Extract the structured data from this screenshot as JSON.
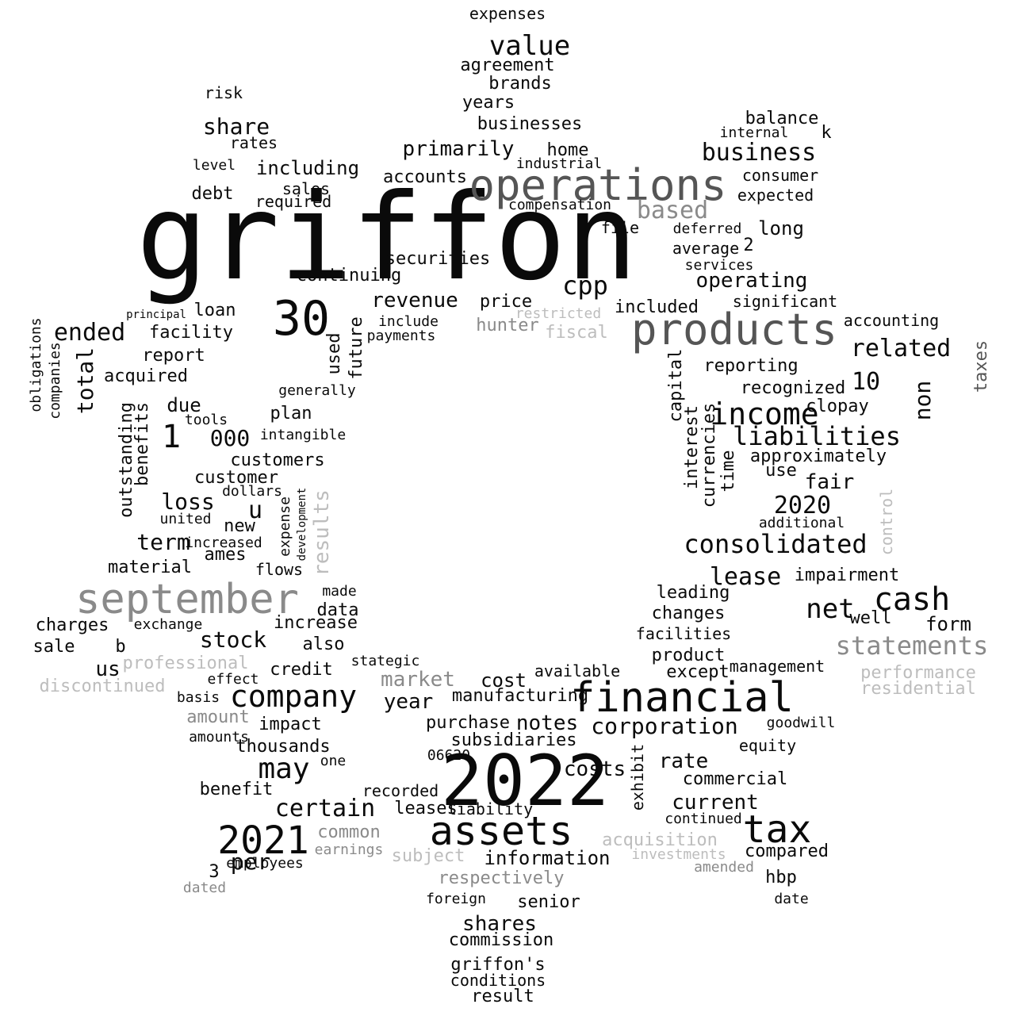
{
  "palette": {
    "dark": "#0a0a0a",
    "mid": "#555555",
    "gray": "#8a8a8a",
    "light": "#bdbdbd"
  },
  "words": [
    {
      "text": "griffon",
      "tone": "dark"
    },
    {
      "text": "2022",
      "tone": "dark"
    },
    {
      "text": "operations",
      "tone": "mid"
    },
    {
      "text": "products",
      "tone": "mid"
    },
    {
      "text": "september",
      "tone": "gray"
    },
    {
      "text": "financial",
      "tone": "dark"
    },
    {
      "text": "30",
      "tone": "dark"
    },
    {
      "text": "assets",
      "tone": "dark"
    },
    {
      "text": "2021",
      "tone": "dark"
    },
    {
      "text": "tax",
      "tone": "dark"
    },
    {
      "text": "income",
      "tone": "dark"
    },
    {
      "text": "company",
      "tone": "dark"
    },
    {
      "text": "cash",
      "tone": "dark"
    },
    {
      "text": "net",
      "tone": "dark"
    },
    {
      "text": "statements",
      "tone": "gray"
    },
    {
      "text": "liabilities",
      "tone": "dark"
    },
    {
      "text": "consolidated",
      "tone": "dark"
    },
    {
      "text": "value",
      "tone": "dark"
    },
    {
      "text": "business",
      "tone": "dark"
    },
    {
      "text": "may",
      "tone": "dark"
    },
    {
      "text": "1",
      "tone": "dark"
    },
    {
      "text": "000",
      "tone": "dark"
    },
    {
      "text": "based",
      "tone": "gray"
    },
    {
      "text": "related",
      "tone": "dark"
    },
    {
      "text": "lease",
      "tone": "dark"
    },
    {
      "text": "corporation",
      "tone": "dark"
    },
    {
      "text": "certain",
      "tone": "dark"
    },
    {
      "text": "costs",
      "tone": "dark"
    },
    {
      "text": "cpp",
      "tone": "dark"
    },
    {
      "text": "share",
      "tone": "dark"
    },
    {
      "text": "ended",
      "tone": "dark"
    },
    {
      "text": "total",
      "tone": "dark"
    },
    {
      "text": "term",
      "tone": "dark"
    },
    {
      "text": "market",
      "tone": "gray"
    },
    {
      "text": "current",
      "tone": "dark"
    },
    {
      "text": "revenue",
      "tone": "dark"
    },
    {
      "text": "stock",
      "tone": "dark"
    },
    {
      "text": "2020",
      "tone": "dark"
    },
    {
      "text": "10",
      "tone": "dark"
    },
    {
      "text": "non",
      "tone": "dark"
    },
    {
      "text": "including",
      "tone": "dark"
    },
    {
      "text": "operating",
      "tone": "dark"
    },
    {
      "text": "primarily",
      "tone": "dark"
    },
    {
      "text": "shares",
      "tone": "dark"
    },
    {
      "text": "notes",
      "tone": "dark"
    },
    {
      "text": "information",
      "tone": "dark"
    },
    {
      "text": "per",
      "tone": "dark"
    },
    {
      "text": "loss",
      "tone": "dark"
    },
    {
      "text": "results",
      "tone": "light"
    },
    {
      "text": "u",
      "tone": "dark"
    },
    {
      "text": "customers",
      "tone": "dark"
    },
    {
      "text": "fair",
      "tone": "dark"
    },
    {
      "text": "rate",
      "tone": "dark"
    },
    {
      "text": "approximately",
      "tone": "dark"
    },
    {
      "text": "agreement",
      "tone": "dark"
    },
    {
      "text": "expenses",
      "tone": "dark"
    },
    {
      "text": "brands",
      "tone": "dark"
    },
    {
      "text": "years",
      "tone": "dark"
    },
    {
      "text": "businesses",
      "tone": "dark"
    },
    {
      "text": "balance",
      "tone": "dark"
    },
    {
      "text": "k",
      "tone": "dark"
    },
    {
      "text": "internal",
      "tone": "dark"
    },
    {
      "text": "home",
      "tone": "dark"
    },
    {
      "text": "industrial",
      "tone": "dark"
    },
    {
      "text": "accounts",
      "tone": "dark"
    },
    {
      "text": "sales",
      "tone": "dark"
    },
    {
      "text": "debt",
      "tone": "dark"
    },
    {
      "text": "rates",
      "tone": "dark"
    },
    {
      "text": "risk",
      "tone": "dark"
    },
    {
      "text": "level",
      "tone": "dark"
    },
    {
      "text": "required",
      "tone": "dark"
    },
    {
      "text": "consumer",
      "tone": "dark"
    },
    {
      "text": "expected",
      "tone": "dark"
    },
    {
      "text": "long",
      "tone": "dark"
    },
    {
      "text": "file",
      "tone": "dark"
    },
    {
      "text": "compensation",
      "tone": "dark"
    },
    {
      "text": "deferred",
      "tone": "dark"
    },
    {
      "text": "average",
      "tone": "dark"
    },
    {
      "text": "2",
      "tone": "dark"
    },
    {
      "text": "services",
      "tone": "dark"
    },
    {
      "text": "securities",
      "tone": "dark"
    },
    {
      "text": "continuing",
      "tone": "dark"
    },
    {
      "text": "price",
      "tone": "dark"
    },
    {
      "text": "hunter",
      "tone": "gray"
    },
    {
      "text": "restricted",
      "tone": "light"
    },
    {
      "text": "fiscal",
      "tone": "light"
    },
    {
      "text": "included",
      "tone": "dark"
    },
    {
      "text": "significant",
      "tone": "dark"
    },
    {
      "text": "accounting",
      "tone": "dark"
    },
    {
      "text": "loan",
      "tone": "dark"
    },
    {
      "text": "facility",
      "tone": "dark"
    },
    {
      "text": "report",
      "tone": "dark"
    },
    {
      "text": "acquired",
      "tone": "dark"
    },
    {
      "text": "principal",
      "tone": "dark"
    },
    {
      "text": "future",
      "tone": "dark"
    },
    {
      "text": "used",
      "tone": "dark"
    },
    {
      "text": "include",
      "tone": "dark"
    },
    {
      "text": "payments",
      "tone": "dark"
    },
    {
      "text": "due",
      "tone": "dark"
    },
    {
      "text": "plan",
      "tone": "dark"
    },
    {
      "text": "generally",
      "tone": "dark"
    },
    {
      "text": "intangible",
      "tone": "dark"
    },
    {
      "text": "customer",
      "tone": "dark"
    },
    {
      "text": "reporting",
      "tone": "dark"
    },
    {
      "text": "recognized",
      "tone": "dark"
    },
    {
      "text": "clopay",
      "tone": "dark"
    },
    {
      "text": "capital",
      "tone": "dark"
    },
    {
      "text": "interest",
      "tone": "dark"
    },
    {
      "text": "currencies",
      "tone": "dark"
    },
    {
      "text": "time",
      "tone": "dark"
    },
    {
      "text": "use",
      "tone": "dark"
    },
    {
      "text": "taxes",
      "tone": "mid"
    },
    {
      "text": "impairment",
      "tone": "dark"
    },
    {
      "text": "leading",
      "tone": "dark"
    },
    {
      "text": "changes",
      "tone": "dark"
    },
    {
      "text": "facilities",
      "tone": "dark"
    },
    {
      "text": "product",
      "tone": "dark"
    },
    {
      "text": "except",
      "tone": "dark"
    },
    {
      "text": "management",
      "tone": "dark"
    },
    {
      "text": "form",
      "tone": "dark"
    },
    {
      "text": "well",
      "tone": "dark"
    },
    {
      "text": "performance",
      "tone": "light"
    },
    {
      "text": "residential",
      "tone": "light"
    },
    {
      "text": "discontinued",
      "tone": "light"
    },
    {
      "text": "professional",
      "tone": "light"
    },
    {
      "text": "us",
      "tone": "dark"
    },
    {
      "text": "sale",
      "tone": "dark"
    },
    {
      "text": "charges",
      "tone": "dark"
    },
    {
      "text": "b",
      "tone": "dark"
    },
    {
      "text": "material",
      "tone": "dark"
    },
    {
      "text": "ames",
      "tone": "dark"
    },
    {
      "text": "new",
      "tone": "dark"
    },
    {
      "text": "increased",
      "tone": "dark"
    },
    {
      "text": "flows",
      "tone": "dark"
    },
    {
      "text": "expense",
      "tone": "dark"
    },
    {
      "text": "development",
      "tone": "dark"
    },
    {
      "text": "data",
      "tone": "dark"
    },
    {
      "text": "increase",
      "tone": "dark"
    },
    {
      "text": "also",
      "tone": "dark"
    },
    {
      "text": "credit",
      "tone": "dark"
    },
    {
      "text": "made",
      "tone": "dark"
    },
    {
      "text": "effect",
      "tone": "dark"
    },
    {
      "text": "amount",
      "tone": "gray"
    },
    {
      "text": "impact",
      "tone": "dark"
    },
    {
      "text": "year",
      "tone": "dark"
    },
    {
      "text": "cost",
      "tone": "dark"
    },
    {
      "text": "manufacturing",
      "tone": "dark"
    },
    {
      "text": "purchase",
      "tone": "dark"
    },
    {
      "text": "subsidiaries",
      "tone": "dark"
    },
    {
      "text": "thousands",
      "tone": "dark"
    },
    {
      "text": "one",
      "tone": "dark"
    },
    {
      "text": "benefit",
      "tone": "dark"
    },
    {
      "text": "recorded",
      "tone": "dark"
    },
    {
      "text": "leases",
      "tone": "dark"
    },
    {
      "text": "liability",
      "tone": "dark"
    },
    {
      "text": "common",
      "tone": "gray"
    },
    {
      "text": "subject",
      "tone": "light"
    },
    {
      "text": "respectively",
      "tone": "gray"
    },
    {
      "text": "senior",
      "tone": "dark"
    },
    {
      "text": "commission",
      "tone": "dark"
    },
    {
      "text": "griffon's",
      "tone": "dark"
    },
    {
      "text": "conditions",
      "tone": "dark"
    },
    {
      "text": "result",
      "tone": "dark"
    },
    {
      "text": "foreign",
      "tone": "dark"
    },
    {
      "text": "acquisition",
      "tone": "light"
    },
    {
      "text": "investments",
      "tone": "light"
    },
    {
      "text": "compared",
      "tone": "dark"
    },
    {
      "text": "hbp",
      "tone": "dark"
    },
    {
      "text": "amended",
      "tone": "gray"
    },
    {
      "text": "commercial",
      "tone": "dark"
    },
    {
      "text": "continued",
      "tone": "dark"
    },
    {
      "text": "equity",
      "tone": "dark"
    },
    {
      "text": "goodwill",
      "tone": "dark"
    },
    {
      "text": "exhibit",
      "tone": "dark"
    },
    {
      "text": "available",
      "tone": "dark"
    },
    {
      "text": "date",
      "tone": "dark"
    },
    {
      "text": "3",
      "tone": "dark"
    },
    {
      "text": "amounts",
      "tone": "dark"
    },
    {
      "text": "employees",
      "tone": "dark"
    },
    {
      "text": "dated",
      "tone": "gray"
    },
    {
      "text": "earnings",
      "tone": "gray"
    },
    {
      "text": "06620",
      "tone": "dark"
    },
    {
      "text": "control",
      "tone": "light"
    },
    {
      "text": "dollars",
      "tone": "dark"
    },
    {
      "text": "united",
      "tone": "dark"
    },
    {
      "text": "tools",
      "tone": "dark"
    },
    {
      "text": "outstanding",
      "tone": "dark"
    },
    {
      "text": "benefits",
      "tone": "dark"
    },
    {
      "text": "companies",
      "tone": "dark"
    },
    {
      "text": "obligations",
      "tone": "dark"
    },
    {
      "text": "exchange",
      "tone": "dark"
    },
    {
      "text": "stategic",
      "tone": "dark"
    },
    {
      "text": "basis",
      "tone": "dark"
    },
    {
      "text": "additional",
      "tone": "dark"
    },
    {
      "text": "september",
      "tone": "gray"
    }
  ]
}
